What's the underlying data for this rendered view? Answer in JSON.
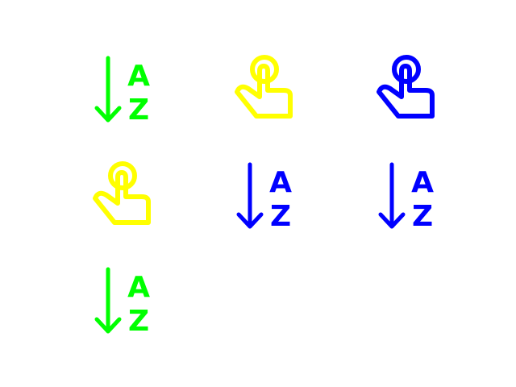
{
  "colors": {
    "green": "#00ff00",
    "yellow": "#ffff00",
    "blue": "#0000ff"
  },
  "icons": [
    {
      "name": "sort-alpha-down-icon",
      "type": "sort",
      "color": "#00ff00",
      "letter_top": "A",
      "letter_bottom": "Z"
    },
    {
      "name": "tap-hand-icon",
      "type": "tap",
      "color": "#ffff00"
    },
    {
      "name": "tap-hand-icon",
      "type": "tap",
      "color": "#0000ff"
    },
    {
      "name": "tap-hand-icon",
      "type": "tap",
      "color": "#ffff00"
    },
    {
      "name": "sort-alpha-down-icon",
      "type": "sort",
      "color": "#0000ff",
      "letter_top": "A",
      "letter_bottom": "Z"
    },
    {
      "name": "sort-alpha-down-icon",
      "type": "sort",
      "color": "#0000ff",
      "letter_top": "A",
      "letter_bottom": "Z"
    },
    {
      "name": "sort-alpha-down-icon",
      "type": "sort",
      "color": "#00ff00",
      "letter_top": "A",
      "letter_bottom": "Z"
    }
  ]
}
